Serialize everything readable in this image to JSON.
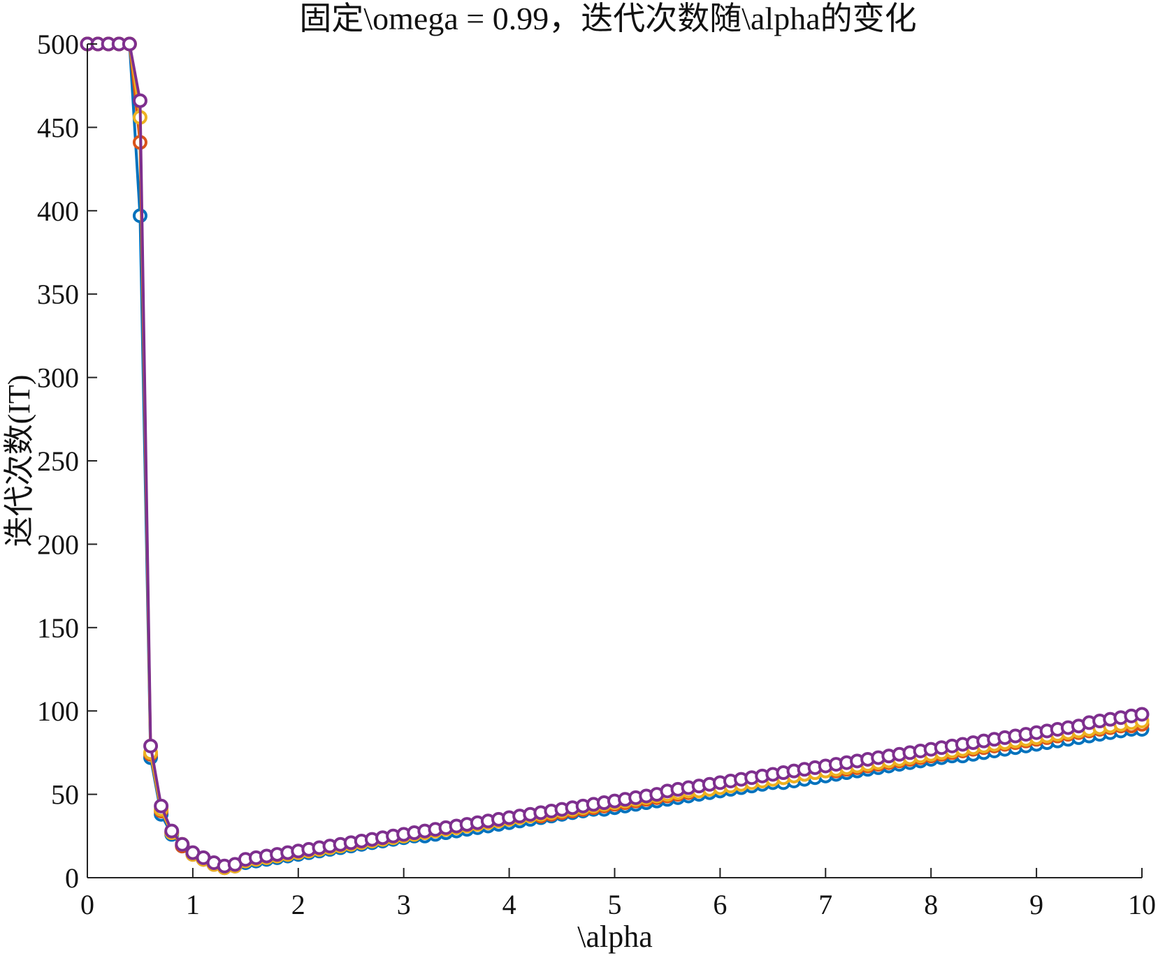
{
  "chart_data": {
    "type": "line",
    "title": "固定\\omega = 0.99，迭代次数随\\alpha的变化",
    "xlabel": "\\alpha",
    "ylabel": "迭代次数(IT)",
    "xlim": [
      0,
      10
    ],
    "ylim": [
      0,
      500
    ],
    "xticks": [
      "0",
      "1",
      "2",
      "3",
      "4",
      "5",
      "6",
      "7",
      "8",
      "9",
      "10"
    ],
    "yticks": [
      "0",
      "50",
      "100",
      "150",
      "200",
      "250",
      "300",
      "350",
      "400",
      "450",
      "500"
    ],
    "grid": false,
    "legend": null,
    "x_start": 0,
    "x_step": 0.1,
    "marker": "circle-open",
    "series": [
      {
        "name": "series-1",
        "color": "#0072BD",
        "values": [
          500,
          500,
          500,
          500,
          500,
          397,
          72,
          38,
          26,
          19,
          14,
          11,
          8,
          6,
          7,
          9,
          10,
          11,
          12,
          13,
          14,
          15,
          16,
          17,
          18,
          19,
          20,
          21,
          22,
          23,
          24,
          25,
          25,
          26,
          27,
          28,
          29,
          30,
          31,
          32,
          33,
          34,
          35,
          36,
          37,
          38,
          39,
          40,
          41,
          41,
          42,
          43,
          44,
          45,
          46,
          47,
          48,
          49,
          50,
          51,
          52,
          53,
          54,
          55,
          56,
          57,
          57,
          58,
          59,
          60,
          61,
          62,
          63,
          64,
          65,
          66,
          67,
          68,
          69,
          70,
          71,
          72,
          73,
          73,
          74,
          75,
          76,
          77,
          78,
          79,
          80,
          81,
          82,
          83,
          84,
          85,
          86,
          87,
          88,
          89,
          89
        ]
      },
      {
        "name": "series-2",
        "color": "#D95319",
        "values": [
          500,
          500,
          500,
          500,
          500,
          441,
          74,
          40,
          27,
          19,
          14,
          11,
          8,
          6,
          7,
          10,
          11,
          12,
          13,
          14,
          15,
          16,
          17,
          18,
          19,
          20,
          21,
          22,
          23,
          24,
          25,
          26,
          27,
          28,
          29,
          30,
          31,
          32,
          33,
          34,
          35,
          36,
          37,
          37,
          38,
          39,
          40,
          41,
          42,
          43,
          44,
          45,
          46,
          47,
          48,
          49,
          50,
          51,
          52,
          53,
          54,
          55,
          56,
          57,
          58,
          59,
          60,
          61,
          62,
          63,
          64,
          64,
          65,
          66,
          67,
          68,
          69,
          70,
          71,
          72,
          73,
          74,
          75,
          76,
          77,
          78,
          79,
          80,
          81,
          82,
          83,
          84,
          85,
          86,
          87,
          88,
          89,
          90,
          91,
          91,
          92
        ]
      },
      {
        "name": "series-3",
        "color": "#EDB120",
        "values": [
          500,
          500,
          500,
          500,
          500,
          456,
          75,
          41,
          27,
          20,
          14,
          11,
          8,
          6,
          7,
          10,
          11,
          12,
          13,
          14,
          15,
          16,
          17,
          18,
          19,
          20,
          21,
          22,
          23,
          24,
          25,
          26,
          27,
          28,
          29,
          30,
          31,
          32,
          33,
          34,
          35,
          36,
          37,
          38,
          39,
          40,
          41,
          42,
          43,
          44,
          45,
          46,
          47,
          48,
          49,
          50,
          51,
          52,
          52,
          53,
          54,
          55,
          56,
          57,
          58,
          59,
          60,
          61,
          62,
          63,
          64,
          65,
          66,
          67,
          68,
          69,
          70,
          71,
          72,
          73,
          74,
          75,
          76,
          77,
          78,
          79,
          80,
          81,
          82,
          83,
          84,
          85,
          86,
          87,
          88,
          89,
          90,
          91,
          92,
          93,
          94
        ]
      },
      {
        "name": "series-4",
        "color": "#7E2F8E",
        "values": [
          500,
          500,
          500,
          500,
          500,
          466,
          79,
          43,
          28,
          20,
          15,
          12,
          9,
          7,
          8,
          11,
          12,
          13,
          14,
          15,
          16,
          17,
          18,
          19,
          20,
          21,
          22,
          23,
          24,
          25,
          26,
          27,
          28,
          29,
          30,
          31,
          32,
          33,
          34,
          35,
          36,
          37,
          38,
          39,
          40,
          41,
          42,
          43,
          44,
          45,
          46,
          47,
          48,
          49,
          50,
          52,
          53,
          54,
          55,
          56,
          57,
          58,
          59,
          60,
          61,
          62,
          63,
          64,
          65,
          66,
          67,
          68,
          69,
          70,
          71,
          72,
          73,
          74,
          75,
          76,
          77,
          78,
          79,
          80,
          81,
          82,
          83,
          84,
          85,
          86,
          87,
          88,
          89,
          90,
          91,
          93,
          94,
          95,
          96,
          97,
          98
        ]
      }
    ]
  }
}
